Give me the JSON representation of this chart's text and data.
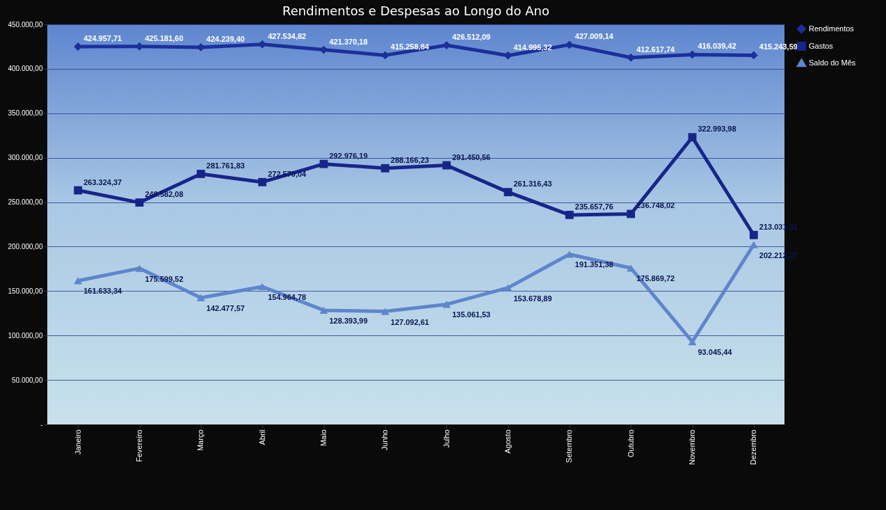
{
  "chart_data": {
    "type": "line",
    "title": "Rendimentos e Despesas ao Longo do Ano",
    "categories": [
      "Janeiro",
      "Fevereiro",
      "Março",
      "Abril",
      "Maio",
      "Junho",
      "Julho",
      "Agosto",
      "Setembro",
      "Outubro",
      "Novembro",
      "Dezembro"
    ],
    "series": [
      {
        "name": "Rendimentos",
        "color": "#1c2f9a",
        "marker": "diamond",
        "values": [
          424957.71,
          425181.6,
          424239.4,
          427534.82,
          421370.18,
          415258.84,
          426512.09,
          414995.32,
          427009.14,
          412617.74,
          416039.42,
          415243.59
        ],
        "value_labels": [
          "424.957,71",
          "425.181,60",
          "424.239,40",
          "427.534,82",
          "421.370,18",
          "415.258,84",
          "426.512,09",
          "414.995,32",
          "427.009,14",
          "412.617,74",
          "416.039,42",
          "415.243,59"
        ]
      },
      {
        "name": "Gastos",
        "color": "#17258a",
        "marker": "square",
        "values": [
          263324.37,
          249582.08,
          281761.83,
          272570.04,
          292976.19,
          288166.23,
          291450.56,
          261316.43,
          235657.76,
          236748.02,
          322993.98,
          213031.32
        ],
        "value_labels": [
          "263.324,37",
          "249.582,08",
          "281.761,83",
          "272.570,04",
          "292.976,19",
          "288.166,23",
          "291.450,56",
          "261.316,43",
          "235.657,76",
          "236.748,02",
          "322.993,98",
          "213.031,32"
        ]
      },
      {
        "name": "Saldo do Mês",
        "color": "#5f86cc",
        "marker": "triangle",
        "values": [
          161633.34,
          175599.52,
          142477.57,
          154964.78,
          128393.99,
          127092.61,
          135061.53,
          153678.89,
          191351.38,
          175869.72,
          93045.44,
          202212.27
        ],
        "value_labels": [
          "161.633,34",
          "175.599,52",
          "142.477,57",
          "154.964,78",
          "128.393,99",
          "127.092,61",
          "135.061,53",
          "153.678,89",
          "191.351,38",
          "175.869,72",
          "93.045,44",
          "202.212,27"
        ]
      }
    ],
    "ylim": [
      0,
      450000
    ],
    "yticks": [
      {
        "value": 0,
        "label": "-"
      },
      {
        "value": 50000,
        "label": "50.000,00"
      },
      {
        "value": 100000,
        "label": "100.000,00"
      },
      {
        "value": 150000,
        "label": "150.000,00"
      },
      {
        "value": 200000,
        "label": "200.000,00"
      },
      {
        "value": 250000,
        "label": "250.000,00"
      },
      {
        "value": 300000,
        "label": "300.000,00"
      },
      {
        "value": 350000,
        "label": "350.000,00"
      },
      {
        "value": 400000,
        "label": "400.000,00"
      },
      {
        "value": 450000,
        "label": "450.000,00"
      }
    ],
    "grid": "y",
    "legend": "right"
  }
}
